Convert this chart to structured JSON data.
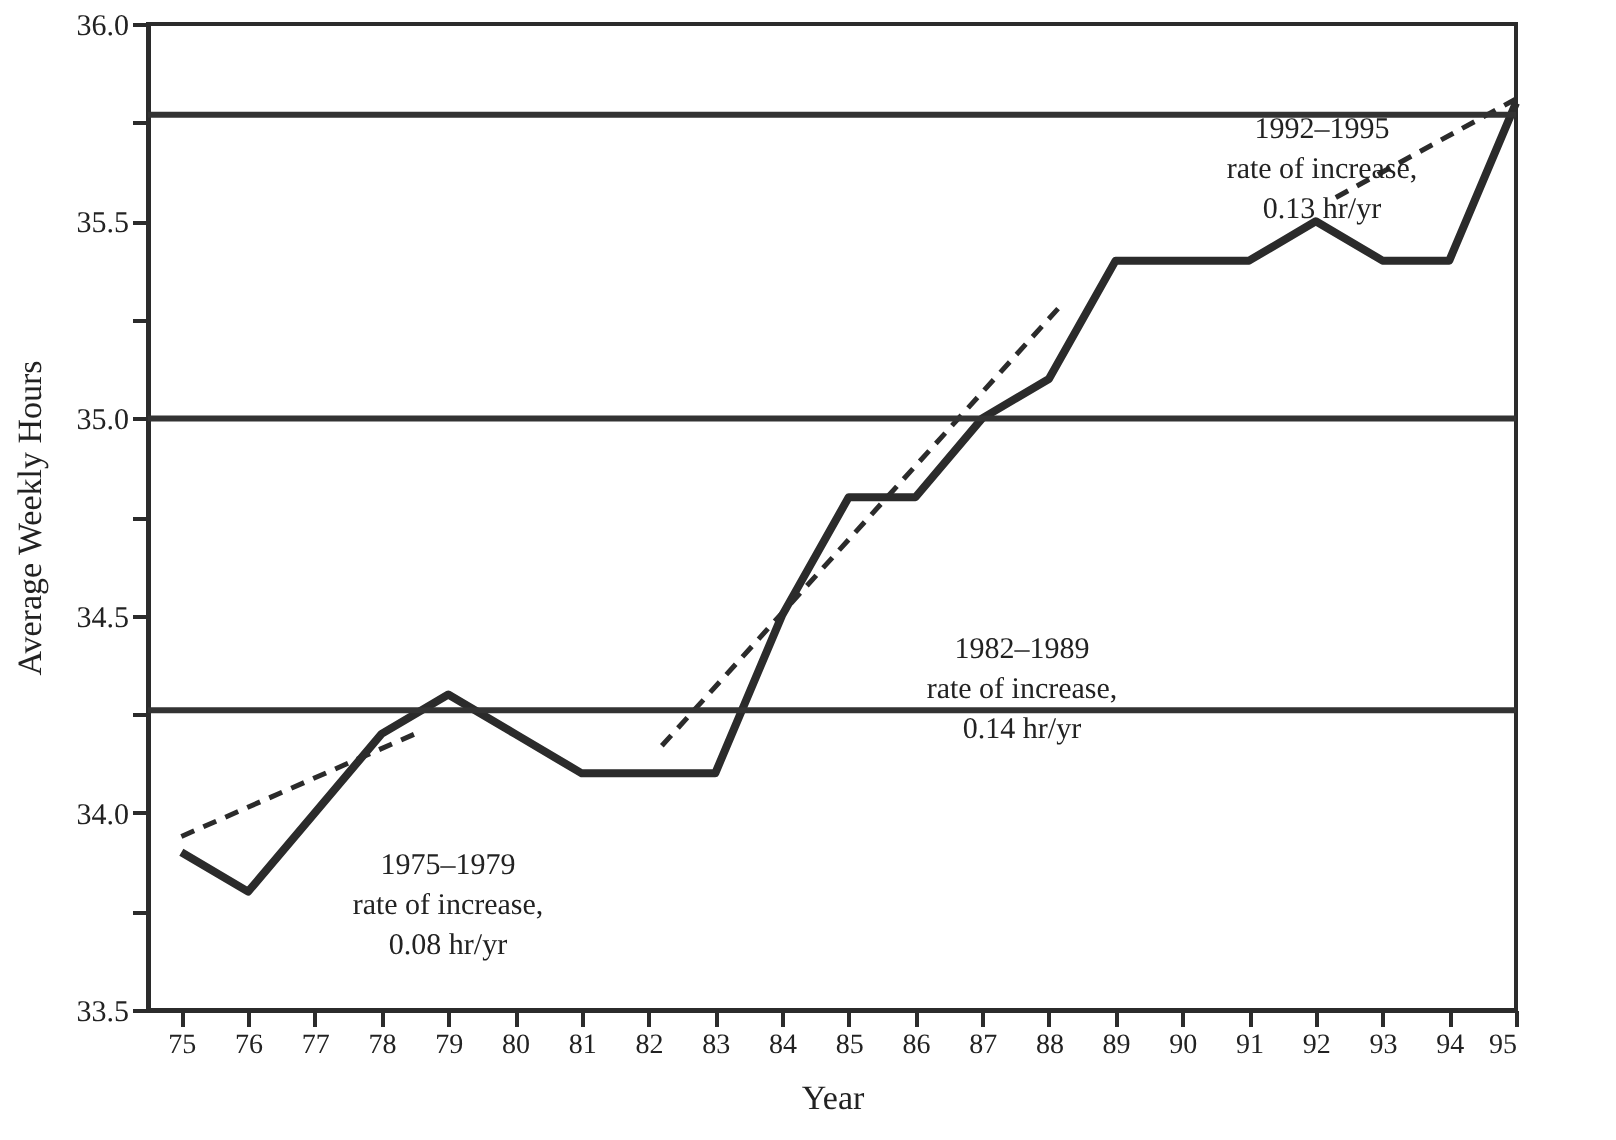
{
  "chart_data": {
    "type": "line",
    "xlabel": "Year",
    "ylabel": "Average Weekly Hours",
    "x": [
      75,
      76,
      77,
      78,
      79,
      80,
      81,
      82,
      83,
      84,
      85,
      86,
      87,
      88,
      89,
      90,
      91,
      92,
      93,
      94,
      95
    ],
    "series": [
      {
        "color": "#2b2b2b",
        "line_style": "solid",
        "values": [
          33.9,
          33.8,
          34.0,
          34.2,
          34.3,
          34.2,
          34.1,
          34.1,
          34.1,
          34.5,
          34.8,
          34.8,
          35.0,
          35.1,
          35.4,
          35.4,
          35.4,
          35.5,
          35.4,
          35.4,
          35.8
        ]
      },
      {
        "type": "line",
        "color": "#2b2b2b",
        "line_style": "dashed",
        "x": [
          75,
          78.5
        ],
        "values": [
          33.94,
          34.2
        ]
      },
      {
        "type": "line",
        "color": "#2b2b2b",
        "line_style": "dashed",
        "x": [
          82.2,
          88.2
        ],
        "values": [
          34.17,
          35.29
        ]
      },
      {
        "type": "line",
        "color": "#2b2b2b",
        "line_style": "dashed",
        "x": [
          92.3,
          95
        ],
        "values": [
          35.56,
          35.81
        ]
      }
    ],
    "xlim": [
      74.5,
      95
    ],
    "xticks": [
      75,
      76,
      77,
      78,
      79,
      80,
      81,
      82,
      83,
      84,
      85,
      86,
      87,
      88,
      89,
      90,
      91,
      92,
      93,
      94,
      95
    ],
    "ylim": [
      33.5,
      36.0
    ],
    "yticks": [
      {
        "value": 33.5,
        "label": "33.5"
      },
      {
        "value": 33.75,
        "label": null
      },
      {
        "value": 34.0,
        "label": "34.0"
      },
      {
        "value": 34.25,
        "label": null
      },
      {
        "value": 34.5,
        "label": "34.5"
      },
      {
        "value": 34.75,
        "label": null
      },
      {
        "value": 35.0,
        "label": "35.0"
      },
      {
        "value": 35.25,
        "label": null
      },
      {
        "value": 35.5,
        "label": "35.5"
      },
      {
        "value": 35.75,
        "label": null
      },
      {
        "value": 36.0,
        "label": "36.0"
      }
    ],
    "ref_lines": [
      {
        "axis": "y",
        "value": 34.26,
        "color": "#333333",
        "line_style": "solid"
      },
      {
        "axis": "y",
        "value": 35.0,
        "color": "#333333",
        "line_style": "solid"
      },
      {
        "axis": "y",
        "value": 35.77,
        "color": "#333333",
        "line_style": "solid"
      }
    ],
    "annotations": [
      "1975–1979\nrate of increase,\n0.08 hr/yr",
      "1982–1989\nrate of increase,\n0.14 hr/yr",
      "1992–1995\nrate of increase,\n0.13 hr/yr"
    ],
    "grid": false,
    "marker": "none"
  }
}
